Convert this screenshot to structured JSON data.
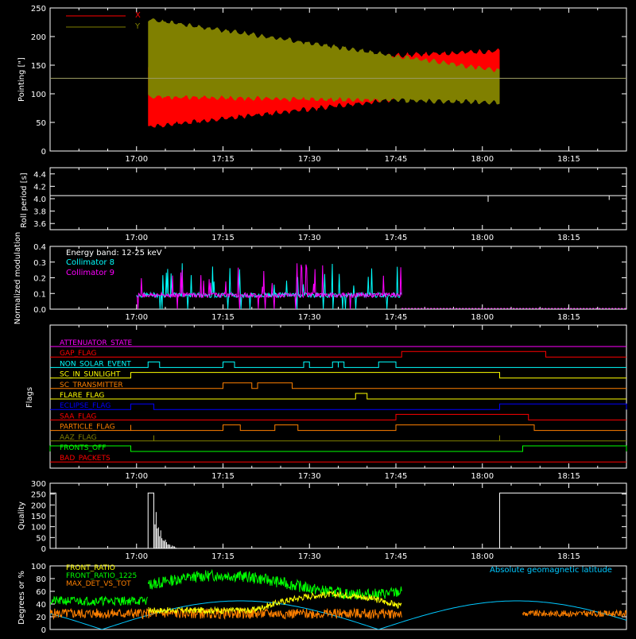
{
  "time_ticks": [
    "17:00",
    "17:15",
    "17:30",
    "17:45",
    "18:00",
    "18:15"
  ],
  "chart_data": [
    {
      "type": "line",
      "ylabel": "Pointing [\"]",
      "ylim": [
        0,
        250
      ],
      "yticks": [
        "0",
        "50",
        "100",
        "150",
        "200",
        "250"
      ],
      "legend_placement": "top-left",
      "series": [
        {
          "name": "X",
          "color": "#ff0000",
          "envelope_start": [
            42,
            148
          ],
          "envelope_end": [
            110,
            175
          ],
          "time_range": [
            "17:02",
            "18:03"
          ]
        },
        {
          "name": "Y",
          "color": "#808000",
          "envelope_start": [
            95,
            230
          ],
          "envelope_end": [
            85,
            140
          ],
          "time_range": [
            "17:02",
            "18:03"
          ]
        }
      ],
      "reference_level": 127
    },
    {
      "type": "line",
      "ylabel": "Roll period [s]",
      "ylim": [
        3.5,
        4.5
      ],
      "yticks": [
        "3.6",
        "3.8",
        "4.0",
        "4.2",
        "4.4"
      ],
      "series": [
        {
          "name": "",
          "color": "#ffffff",
          "level": 4.05
        }
      ]
    },
    {
      "type": "line",
      "ylabel": "Normalized modulation",
      "ylim": [
        0,
        0.4
      ],
      "yticks": [
        "0.0",
        "0.1",
        "0.2",
        "0.3",
        "0.4"
      ],
      "annotation": "Energy band: 12-25 keV",
      "legend_placement": "top-left",
      "series": [
        {
          "name": "Collimator 8",
          "color": "#00ffff"
        },
        {
          "name": "Collimator 9",
          "color": "#ff00ff"
        }
      ],
      "time_range": [
        "17:00",
        "17:46"
      ]
    },
    {
      "type": "line",
      "ylabel": "Flags",
      "flags": [
        {
          "name": "ATTENUATOR_STATE",
          "color": "#ff00ff",
          "on": []
        },
        {
          "name": "GAP_FLAG",
          "color": "#ff0000",
          "on": [
            [
              "17:46",
              "18:11"
            ]
          ]
        },
        {
          "name": "NON_SOLAR_EVENT",
          "color": "#00ffff",
          "on": [
            [
              "17:02",
              "17:04"
            ],
            [
              "17:15",
              "17:17"
            ],
            [
              "17:29",
              "17:30"
            ],
            [
              "17:34",
              "17:35"
            ],
            [
              "17:35",
              "17:36"
            ],
            [
              "17:42",
              "17:45"
            ]
          ]
        },
        {
          "name": "SC_IN_SUNLIGHT",
          "color": "#ffff00",
          "on": [
            [
              "16:59",
              "18:03"
            ]
          ]
        },
        {
          "name": "SC_TRANSMITTER",
          "color": "#ff8000",
          "on": [
            [
              "17:15",
              "17:20"
            ],
            [
              "17:21",
              "17:27"
            ]
          ]
        },
        {
          "name": "FLARE_FLAG",
          "color": "#ffff00",
          "on": [
            [
              "17:38",
              "17:40"
            ]
          ]
        },
        {
          "name": "ECLIPSE_FLAG",
          "color": "#0000ff",
          "on": [
            [
              "16:59",
              "17:03"
            ],
            [
              "18:03",
              "18:25"
            ]
          ]
        },
        {
          "name": "SAA_FLAG",
          "color": "#ff0000",
          "on": [
            [
              "17:45",
              "18:08"
            ]
          ]
        },
        {
          "name": "PARTICLE_FLAG",
          "color": "#ff8000",
          "on": [
            [
              "16:59",
              "16:59"
            ],
            [
              "17:15",
              "17:18"
            ],
            [
              "17:24",
              "17:28"
            ],
            [
              "17:45",
              "18:09"
            ]
          ]
        },
        {
          "name": "AAZ_FLAG",
          "color": "#808000",
          "on": [
            [
              "17:03",
              "17:03"
            ],
            [
              "18:03",
              "18:03"
            ]
          ]
        },
        {
          "name": "FRONTS_OFF",
          "color": "#00ff00",
          "on": [
            [
              "16:45",
              "16:59"
            ],
            [
              "18:07",
              "18:25"
            ]
          ]
        },
        {
          "name": "BAD_PACKETS",
          "color": "#ff0000",
          "on": []
        }
      ]
    },
    {
      "type": "bar",
      "ylabel": "Quality",
      "ylim": [
        0,
        300
      ],
      "yticks": [
        "0",
        "50",
        "100",
        "150",
        "200",
        "250",
        "300"
      ],
      "series": [
        {
          "name": "",
          "color": "#ffffff"
        }
      ],
      "high_level": 255,
      "high_ranges": [
        [
          "16:45",
          "16:46"
        ],
        [
          "17:02",
          "17:03"
        ],
        [
          "18:03",
          "18:25"
        ]
      ]
    },
    {
      "type": "line",
      "ylabel": "Degrees or %",
      "ylim": [
        0,
        100
      ],
      "yticks": [
        "0",
        "20",
        "40",
        "60",
        "80",
        "100"
      ],
      "legend_placement": "top-left",
      "series": [
        {
          "name": "FRONT_RATIO",
          "color": "#ffff00"
        },
        {
          "name": "FRONT_RATIO_1225",
          "color": "#00ff00"
        },
        {
          "name": "MAX_DET_VS_TOT",
          "color": "#ff8000"
        },
        {
          "name": "Absolute geomagnetic latitude",
          "color": "#00c8ff"
        }
      ]
    }
  ]
}
